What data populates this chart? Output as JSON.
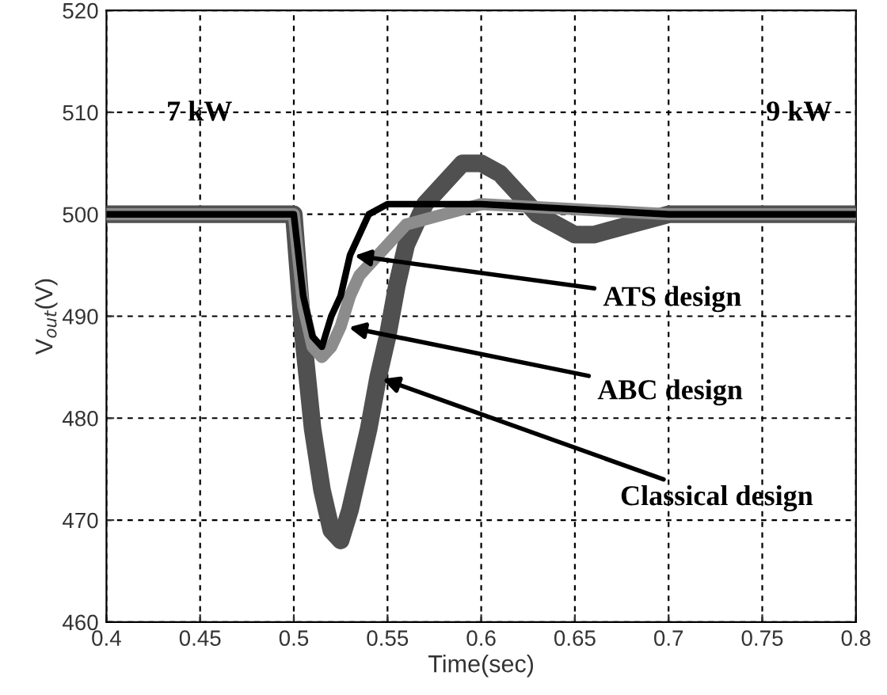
{
  "chart_data": {
    "type": "line",
    "xlabel": "Time(sec)",
    "ylabel": "V$_{out}$(V)",
    "xlim": [
      0.4,
      0.8
    ],
    "ylim": [
      460,
      520
    ],
    "xticks": [
      0.4,
      0.45,
      0.5,
      0.55,
      0.6,
      0.65,
      0.7,
      0.75,
      0.8
    ],
    "yticks": [
      460,
      470,
      480,
      490,
      500,
      510,
      520
    ],
    "grid": true,
    "legend": false,
    "line_style": "solid",
    "marker": "none",
    "series": [
      {
        "color": "#000000",
        "x": [
          0.4,
          0.5,
          0.505,
          0.51,
          0.515,
          0.52,
          0.525,
          0.53,
          0.535,
          0.54,
          0.55,
          0.6,
          0.7,
          0.8
        ],
        "values": [
          500,
          500,
          492,
          488,
          487,
          490,
          492,
          496,
          498,
          500,
          501,
          501,
          500,
          500
        ]
      },
      {
        "color": "#8c8c8c",
        "x": [
          0.4,
          0.5,
          0.505,
          0.51,
          0.515,
          0.52,
          0.525,
          0.53,
          0.535,
          0.54,
          0.55,
          0.56,
          0.6,
          0.7,
          0.8
        ],
        "values": [
          500,
          500,
          491,
          487,
          486,
          487,
          489,
          492,
          494,
          495,
          497,
          499,
          501,
          500,
          500
        ]
      },
      {
        "color": "#505050",
        "x": [
          0.4,
          0.5,
          0.505,
          0.51,
          0.515,
          0.52,
          0.525,
          0.53,
          0.535,
          0.54,
          0.545,
          0.55,
          0.555,
          0.56,
          0.57,
          0.58,
          0.59,
          0.6,
          0.61,
          0.62,
          0.63,
          0.65,
          0.66,
          0.68,
          0.7,
          0.8
        ],
        "values": [
          500,
          500,
          488,
          479,
          473,
          469,
          468,
          471,
          475,
          479,
          484,
          488,
          493,
          497,
          501,
          503,
          505,
          505,
          504,
          502,
          500,
          498,
          498,
          499,
          500,
          500
        ]
      }
    ],
    "annotations": [
      "7 kW",
      "9 kW",
      {
        "text": "ATS design",
        "x": 0.53,
        "y": 496
      },
      {
        "text": "ABC design",
        "x": 0.527,
        "y": 489
      },
      {
        "text": "Classical design",
        "x": 0.545,
        "y": 484
      }
    ]
  }
}
